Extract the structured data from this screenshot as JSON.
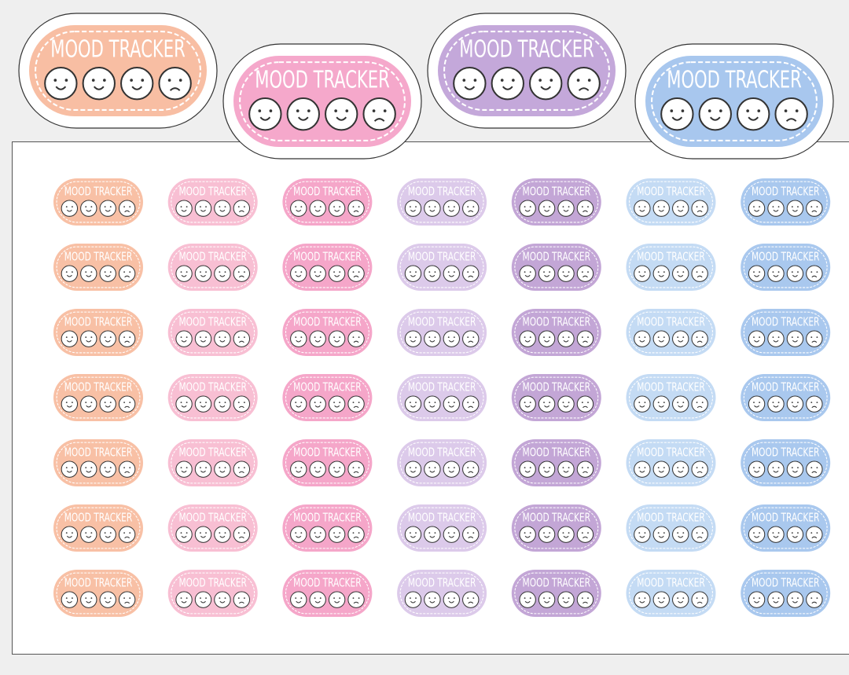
{
  "large_stickers": [
    {
      "label": "MOOD TRACKER",
      "color": "#f8bea3"
    },
    {
      "label": "MOOD TRACKER",
      "color": "#f5a8cb"
    },
    {
      "label": "MOOD TRACKER",
      "color": "#c4a8da"
    },
    {
      "label": "MOOD TRACKER",
      "color": "#a8c7ee"
    }
  ],
  "sheet": {
    "columns": [
      {
        "color": "#f8c0a5",
        "stickers": [
          "MOOD TRACKER",
          "MOOD TRACKER",
          "MOOD TRACKER",
          "MOOD TRACKER",
          "MOOD TRACKER",
          "MOOD TRACKER",
          "MOOD TRACKER"
        ]
      },
      {
        "color": "#f8bfd3",
        "stickers": [
          "MOOD TRACKER",
          "MOOD TRACKER",
          "MOOD TRACKER",
          "MOOD TRACKER",
          "MOOD TRACKER",
          "MOOD TRACKER",
          "MOOD TRACKER"
        ]
      },
      {
        "color": "#f5a6c9",
        "stickers": [
          "MOOD TRACKER",
          "MOOD TRACKER",
          "MOOD TRACKER",
          "MOOD TRACKER",
          "MOOD TRACKER",
          "MOOD TRACKER",
          "MOOD TRACKER"
        ]
      },
      {
        "color": "#dccaea",
        "stickers": [
          "MOOD TRACKER",
          "MOOD TRACKER",
          "MOOD TRACKER",
          "MOOD TRACKER",
          "MOOD TRACKER",
          "MOOD TRACKER",
          "MOOD TRACKER"
        ]
      },
      {
        "color": "#c3a6d6",
        "stickers": [
          "MOOD TRACKER",
          "MOOD TRACKER",
          "MOOD TRACKER",
          "MOOD TRACKER",
          "MOOD TRACKER",
          "MOOD TRACKER",
          "MOOD TRACKER"
        ]
      },
      {
        "color": "#c4dbf4",
        "stickers": [
          "MOOD TRACKER",
          "MOOD TRACKER",
          "MOOD TRACKER",
          "MOOD TRACKER",
          "MOOD TRACKER",
          "MOOD TRACKER",
          "MOOD TRACKER"
        ]
      },
      {
        "color": "#a9c8ee",
        "stickers": [
          "MOOD TRACKER",
          "MOOD TRACKER",
          "MOOD TRACKER",
          "MOOD TRACKER",
          "MOOD TRACKER",
          "MOOD TRACKER",
          "MOOD TRACKER"
        ]
      }
    ]
  }
}
